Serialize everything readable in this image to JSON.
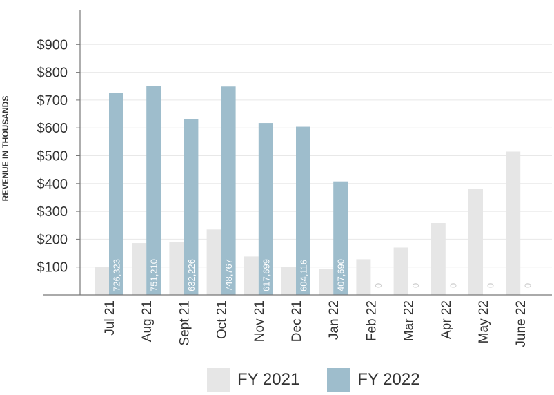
{
  "colors": {
    "fy2021": "#e6e6e6",
    "fy2022": "#9ebdcc",
    "axis": "#777777",
    "grid": "#e8e8e8",
    "text": "#333333",
    "bar_label": "#ffffff",
    "zero_label": "#ffffff"
  },
  "chart_data": {
    "type": "bar",
    "ylabel": "REVENUE IN THOUSANDS",
    "ylim": [
      0,
      1000
    ],
    "y_ticks": [
      100,
      200,
      300,
      400,
      500,
      600,
      700,
      800,
      900
    ],
    "y_tick_labels": [
      "$100",
      "$200",
      "$300",
      "$400",
      "$500",
      "$600",
      "$700",
      "$800",
      "$900"
    ],
    "grid": true,
    "categories": [
      "Jul 21",
      "Aug 21",
      "Sept 21",
      "Oct 21",
      "Nov 21",
      "Dec 21",
      "Jan 22",
      "Feb 22",
      "Mar 22",
      "Apr 22",
      "May 22",
      "June 22"
    ],
    "series": [
      {
        "name": "FY 2021",
        "values": [
          100,
          186,
          190,
          235,
          138,
          100,
          94,
          128,
          170,
          258,
          380,
          515
        ]
      },
      {
        "name": "FY 2022",
        "values": [
          726.323,
          751.21,
          632.226,
          748.767,
          617.699,
          604.116,
          407.69,
          0,
          0,
          0,
          0,
          0
        ],
        "labels": [
          "726,323",
          "751,210",
          "632,226",
          "748,767",
          "617,699",
          "604,116",
          "407,690",
          "0",
          "0",
          "0",
          "0",
          "0"
        ]
      }
    ],
    "legend_position": "bottom"
  }
}
